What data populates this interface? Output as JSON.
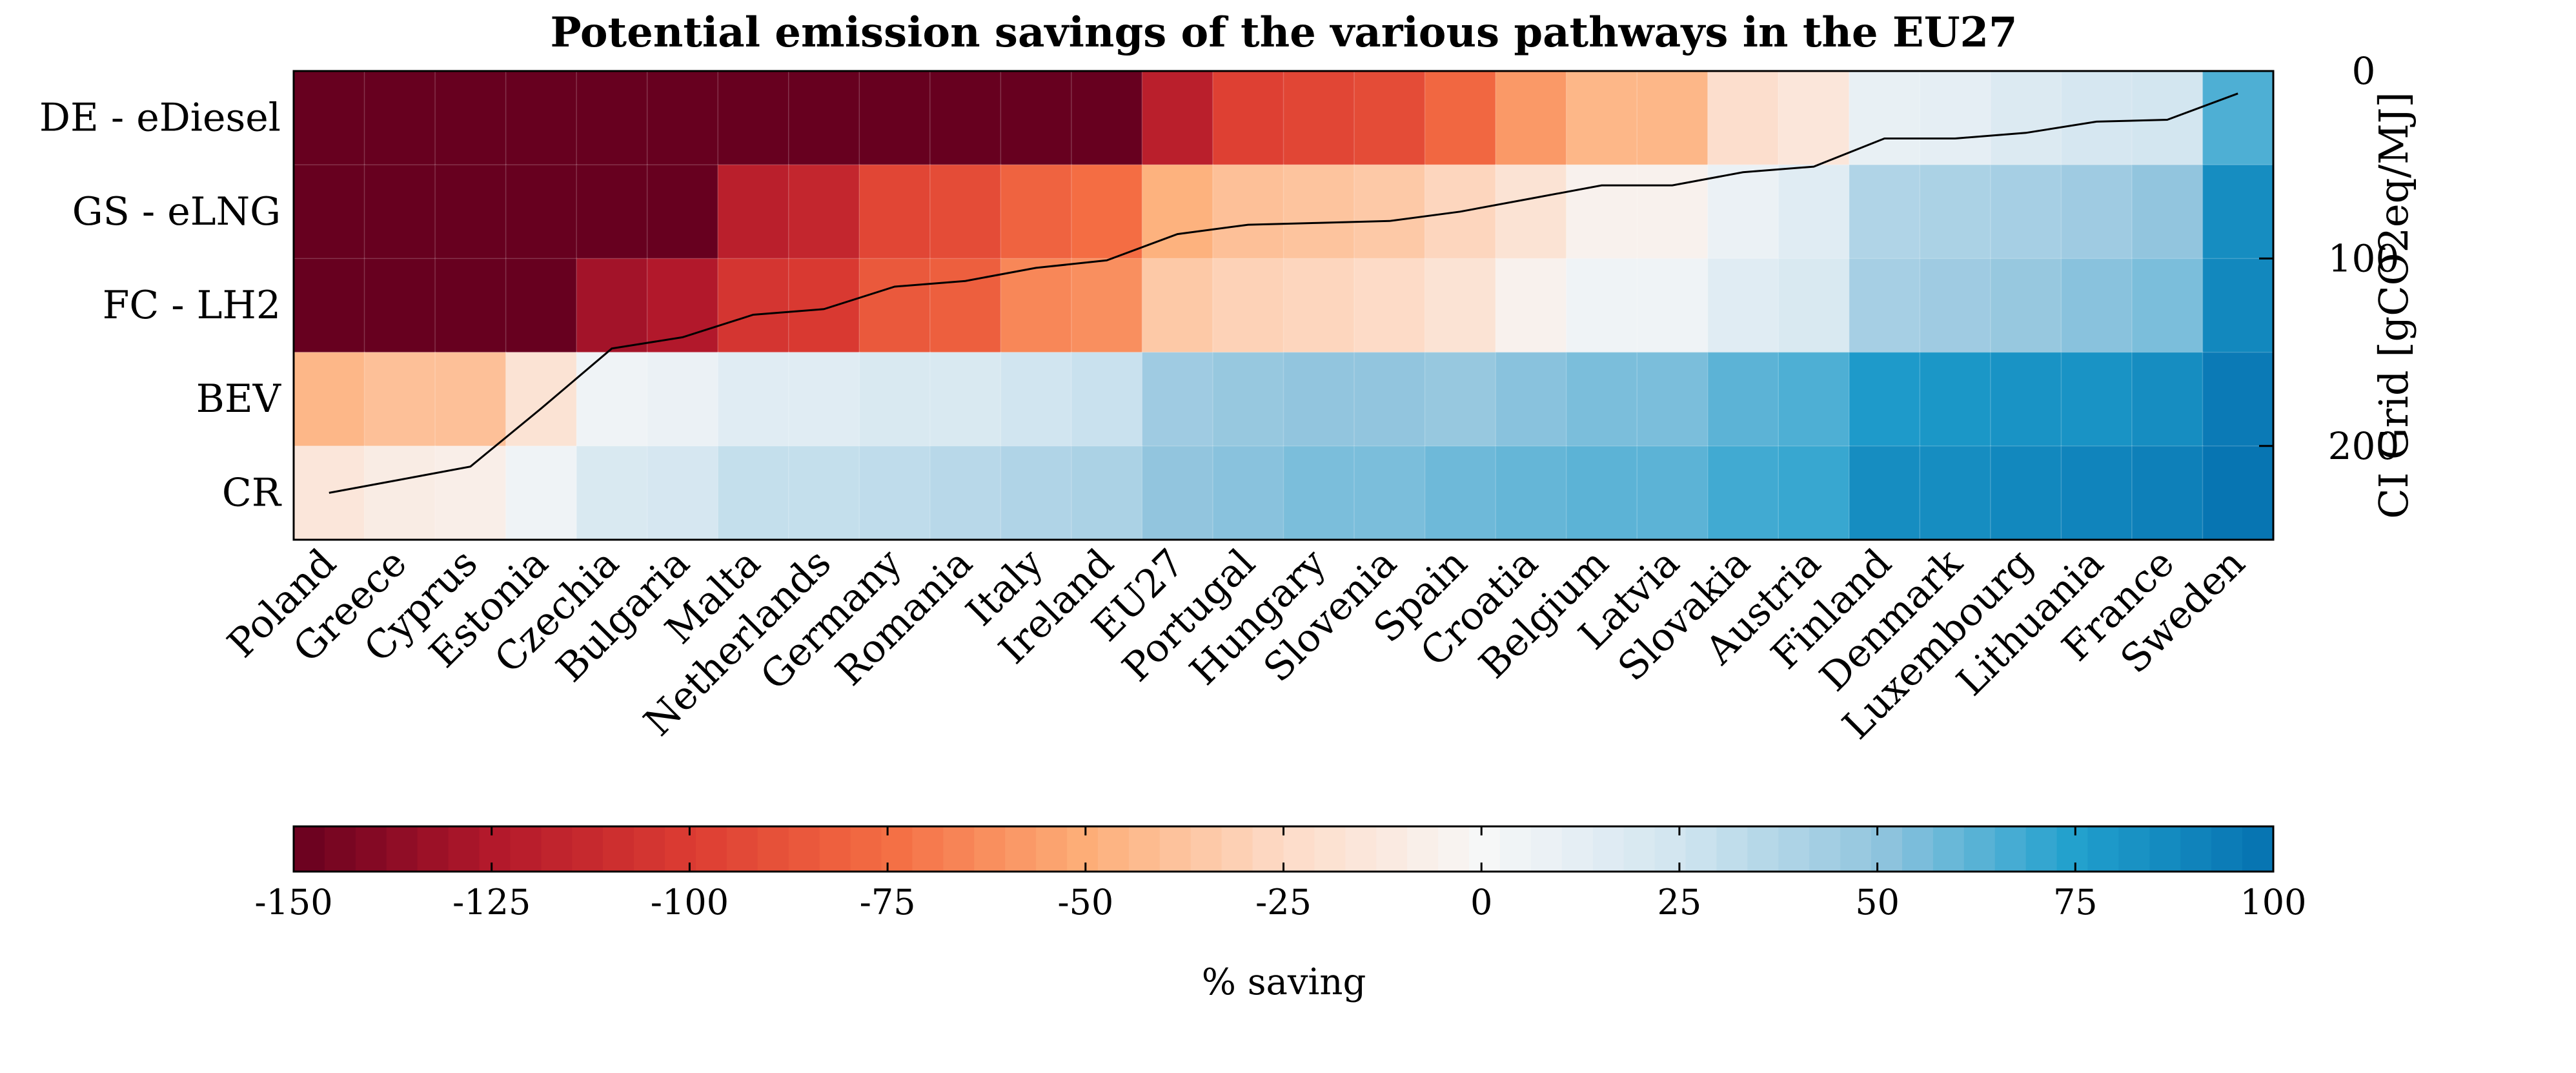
{
  "chart_data": {
    "type": "heatmap",
    "title": "Potential emission savings of the various pathways in the EU27",
    "rows": [
      "DE - eDiesel",
      "GS - eLNG",
      "FC - LH2",
      "BEV",
      "CR"
    ],
    "columns": [
      "Poland",
      "Greece",
      "Cyprus",
      "Estonia",
      "Czechia",
      "Bulgaria",
      "Malta",
      "Netherlands",
      "Germany",
      "Romania",
      "Italy",
      "Ireland",
      "EU27",
      "Portugal",
      "Hungary",
      "Slovenia",
      "Spain",
      "Croatia",
      "Belgium",
      "Latvia",
      "Slovakia",
      "Austria",
      "Finland",
      "Denmark",
      "Luxembourg",
      "Lithuania",
      "France",
      "Sweden"
    ],
    "values": [
      [
        -150,
        -150,
        -150,
        -150,
        -150,
        -150,
        -150,
        -150,
        -150,
        -150,
        -150,
        -150,
        -120,
        -98,
        -95,
        -92,
        -78,
        -58,
        -45,
        -45,
        -22,
        -15,
        10,
        12,
        18,
        22,
        24,
        65
      ],
      [
        -150,
        -150,
        -150,
        -150,
        -150,
        -150,
        -120,
        -115,
        -95,
        -92,
        -80,
        -75,
        -48,
        -40,
        -38,
        -35,
        -28,
        -18,
        -5,
        -5,
        8,
        15,
        38,
        40,
        42,
        45,
        50,
        85
      ],
      [
        -150,
        -150,
        -150,
        -150,
        -130,
        -125,
        -105,
        -102,
        -85,
        -82,
        -65,
        -62,
        -35,
        -30,
        -28,
        -25,
        -18,
        -5,
        5,
        5,
        15,
        20,
        42,
        45,
        48,
        52,
        55,
        88
      ],
      [
        -45,
        -40,
        -40,
        -18,
        5,
        8,
        15,
        15,
        20,
        20,
        25,
        28,
        45,
        48,
        50,
        50,
        48,
        52,
        55,
        55,
        62,
        65,
        78,
        80,
        82,
        82,
        85,
        95
      ],
      [
        -15,
        -10,
        -8,
        5,
        20,
        22,
        30,
        30,
        32,
        35,
        38,
        40,
        50,
        52,
        55,
        55,
        58,
        60,
        62,
        62,
        68,
        70,
        85,
        85,
        88,
        90,
        92,
        98
      ]
    ],
    "ci_grid": [
      225,
      218,
      211,
      180,
      148,
      142,
      130,
      127,
      115,
      112,
      105,
      101,
      87,
      82,
      81,
      80,
      75,
      68,
      61,
      61,
      54,
      51,
      36,
      36,
      33,
      27,
      26,
      12
    ],
    "secondary_axis": {
      "label": "CI Grid [gCO2eq/MJ]",
      "range": [
        0,
        250
      ],
      "ticks": [
        0,
        100,
        200
      ],
      "tick_labels": [
        "0",
        "100",
        "200"
      ]
    },
    "colorbar": {
      "label": "% saving",
      "range": [
        -150,
        100
      ],
      "ticks": [
        -150,
        -125,
        -100,
        -75,
        -50,
        -25,
        0,
        25,
        50,
        75,
        100
      ],
      "tick_labels": [
        "-150",
        "-125",
        "-100",
        "-75",
        "-50",
        "-25",
        "0",
        "25",
        "50",
        "75",
        "100"
      ],
      "colors": {
        "min": "#67001f",
        "mid": "#f7f7f7",
        "max": "#0571b0"
      }
    },
    "line_color": "#000000"
  }
}
